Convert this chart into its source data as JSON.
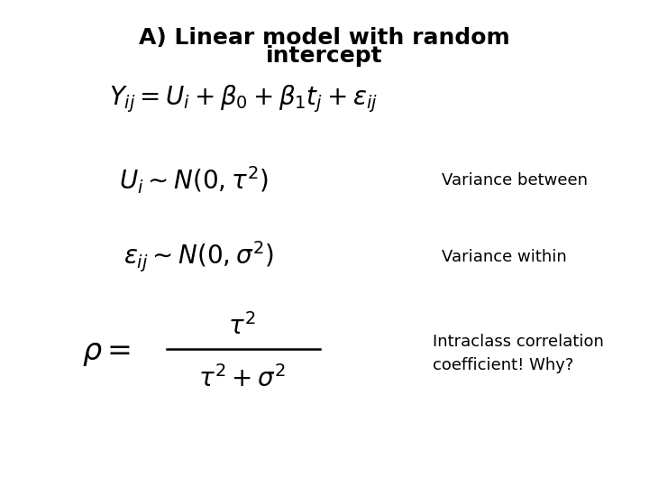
{
  "title_line1": "A) Linear model with random",
  "title_line2": "intercept",
  "title_fontsize": 18,
  "title_fontweight": "bold",
  "background_color": "#ffffff",
  "eq_fontsize": 17,
  "label_fontsize": 13,
  "label1": "Variance between",
  "label2": "Variance within",
  "label3": "Intraclass correlation\ncoefficient! Why?"
}
